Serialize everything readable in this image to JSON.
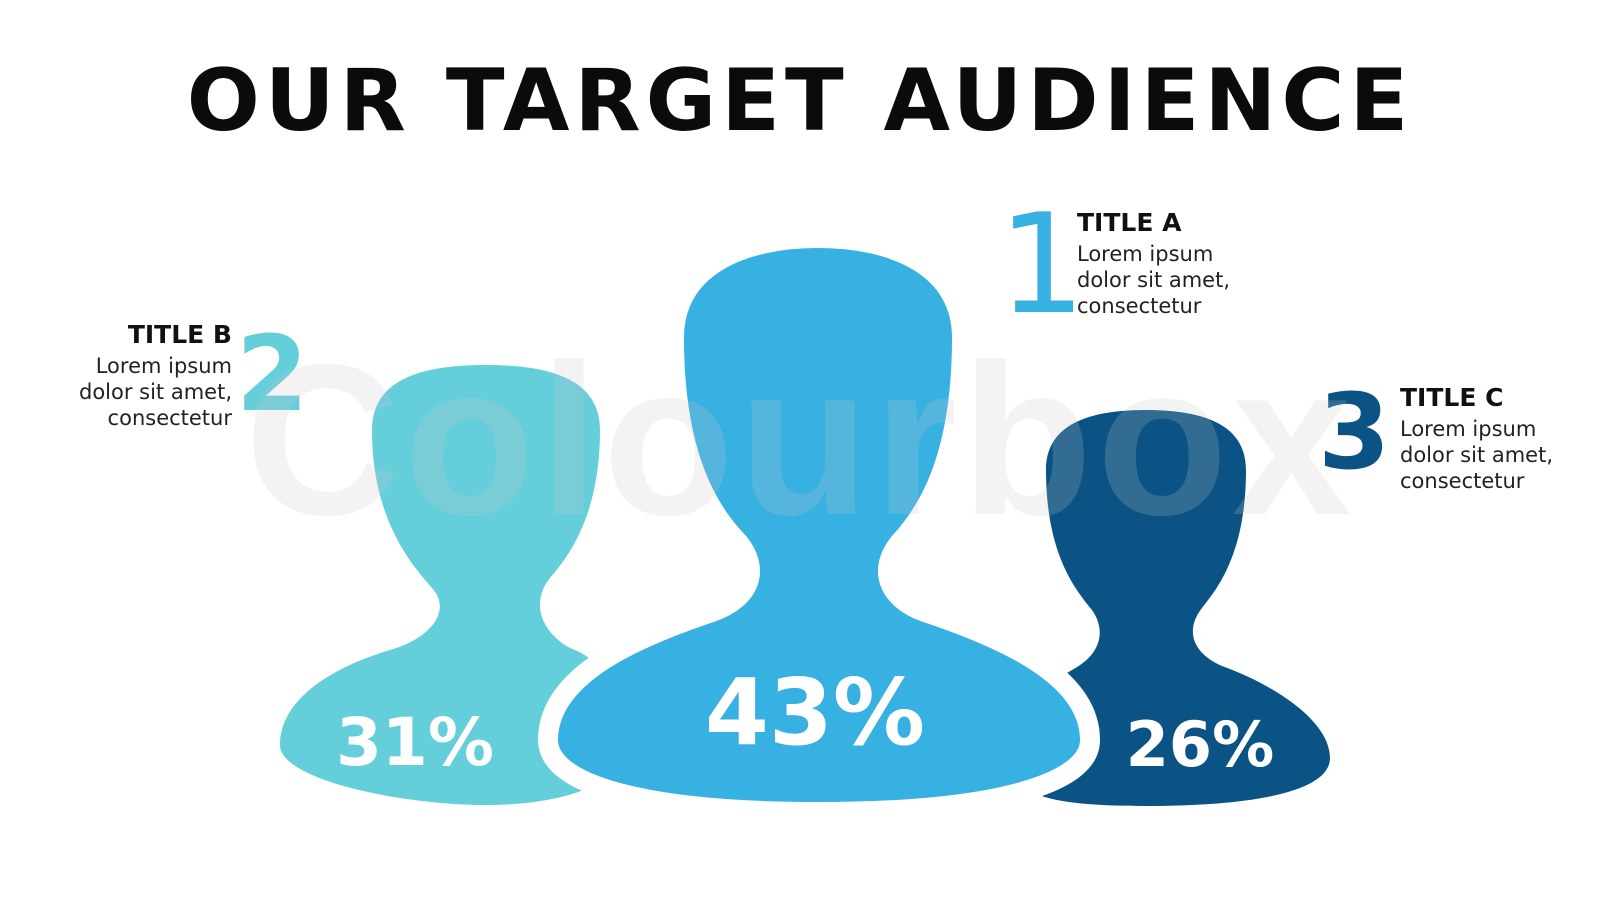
{
  "title": "OUR TARGET AUDIENCE",
  "watermark": "Colourbox",
  "colors": {
    "segment_1": "#37b0e2",
    "segment_2": "#64cfdb",
    "segment_3": "#0a5384"
  },
  "segments": [
    {
      "number": "1",
      "title": "TITLE A",
      "text": "Lorem ipsum dolor sit amet, consectetur",
      "percent_label": "43%",
      "value": 43,
      "icon": "person-silhouette-icon"
    },
    {
      "number": "2",
      "title": "TITLE B",
      "text": "Lorem ipsum dolor sit amet, consectetur",
      "percent_label": "31%",
      "value": 31,
      "icon": "person-silhouette-icon"
    },
    {
      "number": "3",
      "title": "TITLE C",
      "text": "Lorem ipsum dolor sit amet, consectetur",
      "percent_label": "26%",
      "value": 26,
      "icon": "person-silhouette-icon"
    }
  ]
}
